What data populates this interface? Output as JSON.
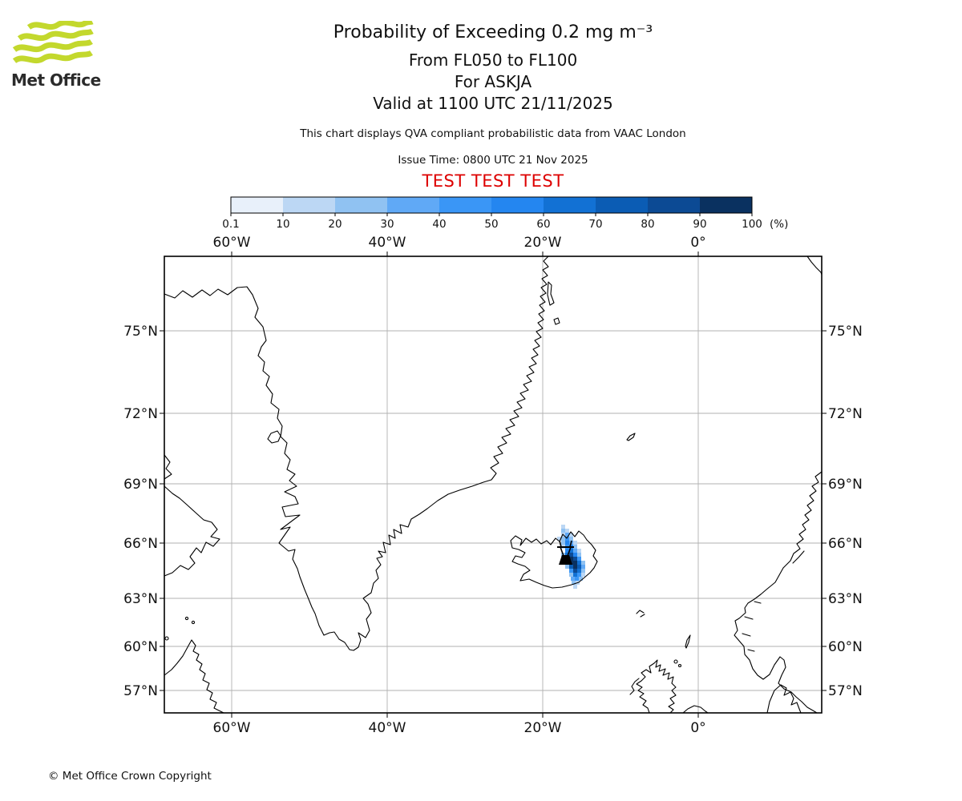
{
  "logo": {
    "brand": "Met Office",
    "flag_color": "#c3d82d"
  },
  "header": {
    "title": "Probability of Exceeding 0.2 mg m⁻³",
    "subtitle_lines": [
      "From FL050 to FL100",
      "For ASKJA",
      "Valid at 1100 UTC 21/11/2025"
    ],
    "note": "This chart displays QVA compliant probabilistic data from VAAC London",
    "issue_time": "Issue Time: 0800 UTC 21 Nov 2025",
    "test_banner": "TEST TEST TEST",
    "test_banner_color": "#dd0000"
  },
  "colorbar": {
    "tick_labels": [
      "0.1",
      "10",
      "20",
      "30",
      "40",
      "50",
      "60",
      "70",
      "80",
      "90",
      "100"
    ],
    "unit": "(%)",
    "colors": [
      "#e8f0fa",
      "#bcd7f4",
      "#90c2f2",
      "#60a9f6",
      "#3a96f6",
      "#2486f0",
      "#1271d4",
      "#0b5cb4",
      "#0c4a94",
      "#0a3160"
    ]
  },
  "map": {
    "lon_labels": [
      "60°W",
      "40°W",
      "20°W",
      "0°"
    ],
    "lat_labels": [
      "75°N",
      "72°N",
      "69°N",
      "66°N",
      "63°N",
      "60°N",
      "57°N"
    ],
    "volcano_name": "ASKJA",
    "plume_cells": [
      [
        700,
        655,
        2
      ],
      [
        700,
        660,
        3
      ],
      [
        705,
        660,
        2
      ],
      [
        700,
        665,
        2
      ],
      [
        705,
        665,
        4
      ],
      [
        710,
        665,
        2
      ],
      [
        695,
        670,
        2
      ],
      [
        700,
        670,
        3
      ],
      [
        705,
        670,
        5
      ],
      [
        710,
        670,
        3
      ],
      [
        700,
        675,
        3
      ],
      [
        705,
        675,
        6
      ],
      [
        710,
        675,
        4
      ],
      [
        715,
        675,
        2
      ],
      [
        700,
        680,
        2
      ],
      [
        705,
        680,
        5
      ],
      [
        710,
        680,
        6
      ],
      [
        715,
        680,
        3
      ],
      [
        705,
        685,
        6
      ],
      [
        710,
        685,
        7
      ],
      [
        715,
        685,
        4
      ],
      [
        720,
        685,
        2
      ],
      [
        700,
        690,
        3
      ],
      [
        705,
        690,
        7
      ],
      [
        710,
        690,
        9
      ],
      [
        715,
        690,
        6
      ],
      [
        720,
        690,
        3
      ],
      [
        705,
        695,
        5
      ],
      [
        710,
        695,
        10
      ],
      [
        715,
        695,
        9
      ],
      [
        720,
        695,
        5
      ],
      [
        705,
        700,
        4
      ],
      [
        710,
        700,
        10
      ],
      [
        715,
        700,
        10
      ],
      [
        720,
        700,
        7
      ],
      [
        725,
        700,
        3
      ],
      [
        705,
        705,
        3
      ],
      [
        710,
        705,
        8
      ],
      [
        715,
        705,
        10
      ],
      [
        720,
        705,
        8
      ],
      [
        725,
        705,
        4
      ],
      [
        710,
        710,
        5
      ],
      [
        715,
        710,
        9
      ],
      [
        720,
        710,
        7
      ],
      [
        725,
        710,
        3
      ],
      [
        710,
        715,
        3
      ],
      [
        715,
        715,
        7
      ],
      [
        720,
        715,
        5
      ],
      [
        725,
        715,
        2
      ],
      [
        712,
        720,
        4
      ],
      [
        717,
        720,
        5
      ],
      [
        722,
        720,
        3
      ],
      [
        713,
        725,
        3
      ],
      [
        718,
        725,
        2
      ],
      [
        715,
        730,
        2
      ]
    ]
  },
  "footer": {
    "copyright": "© Met Office Crown Copyright"
  }
}
